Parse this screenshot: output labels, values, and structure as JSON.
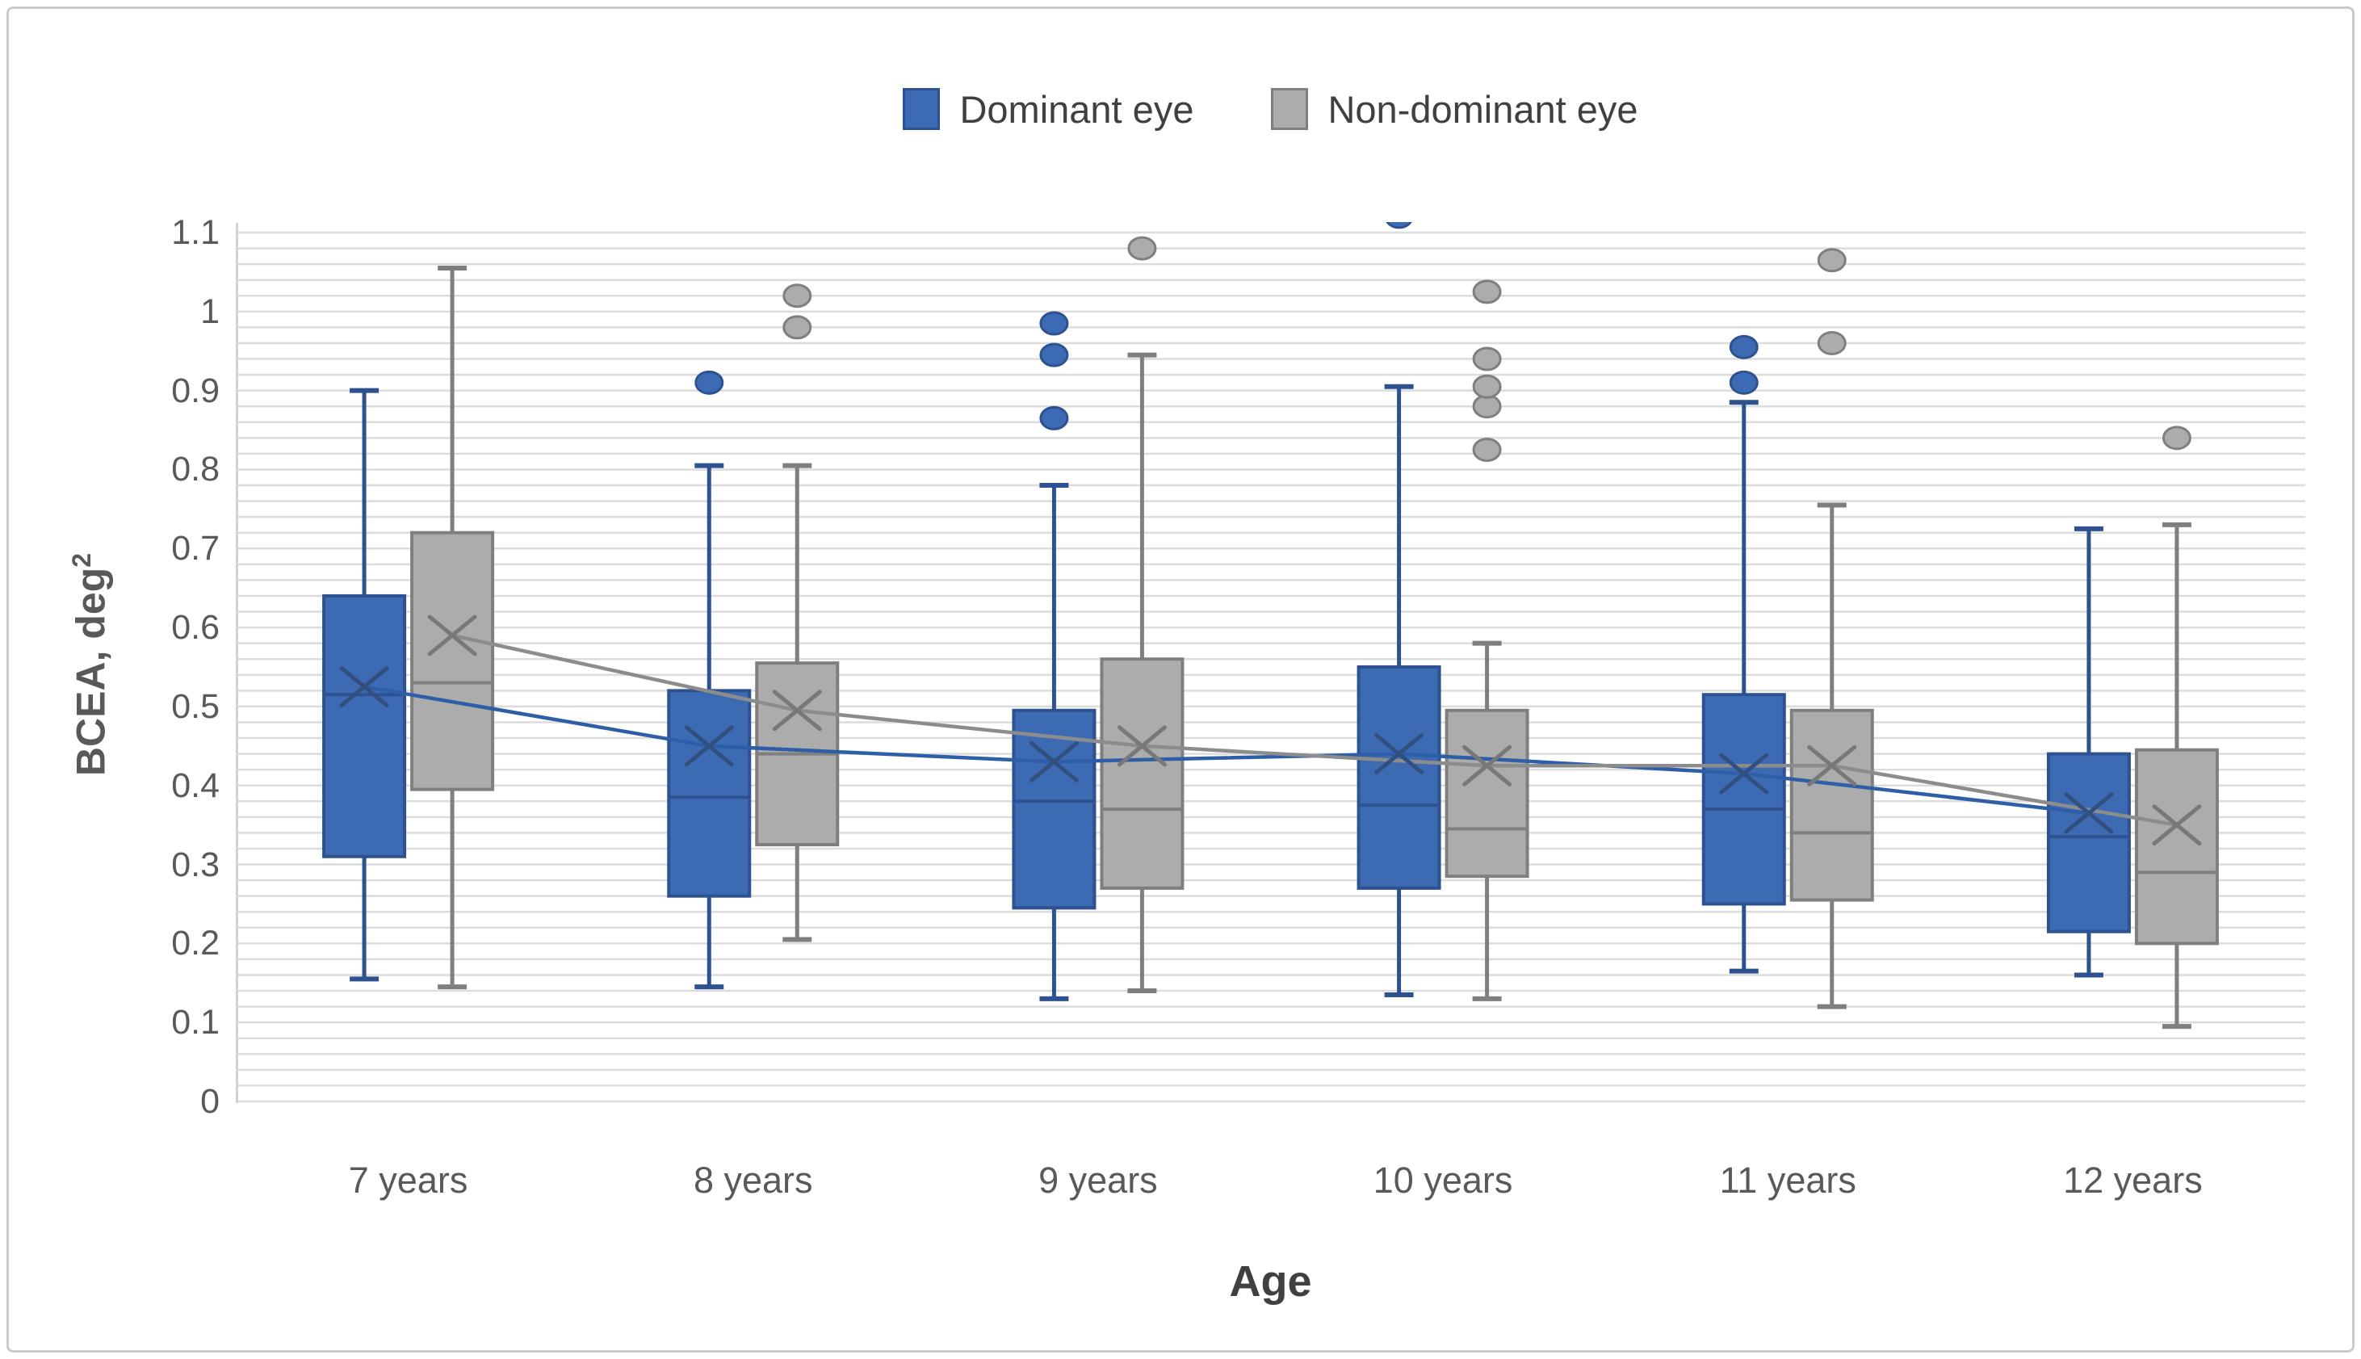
{
  "legend": {
    "items": [
      {
        "label": "Dominant eye",
        "color": "#3d6bb3",
        "border": "#2e5290"
      },
      {
        "label": "Non-dominant eye",
        "color": "#acacac",
        "border": "#7f7f7f"
      }
    ]
  },
  "y_axis": {
    "title": "BCEA, deg",
    "title_superscript": "2",
    "ticks": [
      "1.1",
      "1",
      "0.9",
      "0.8",
      "0.7",
      "0.6",
      "0.5",
      "0.4",
      "0.3",
      "0.2",
      "0.1",
      "0"
    ],
    "min": 0,
    "max": 1.1,
    "minor_gridline_step": 0.02,
    "gridline_color": "#dcdcdc"
  },
  "x_axis": {
    "title": "Age",
    "categories": [
      "7 years",
      "8 years",
      "9 years",
      "10 years",
      "11 years",
      "12 years"
    ]
  },
  "chart_data": {
    "type": "boxplot",
    "title": "",
    "xlabel": "Age",
    "ylabel": "BCEA, deg2",
    "ylim": [
      0,
      1.1
    ],
    "grid": "horizontal-minor",
    "legend_position": "top-center",
    "categories": [
      "7 years",
      "8 years",
      "9 years",
      "10 years",
      "11 years",
      "12 years"
    ],
    "series": [
      {
        "name": "Dominant eye",
        "fill": "#3d6bb3",
        "stroke": "#2e5290",
        "trend_line_color": "#2e5ea8",
        "mean_marker_color": "#31507f",
        "boxes": [
          {
            "whisker_low": 0.155,
            "q1": 0.31,
            "median": 0.515,
            "mean": 0.525,
            "q3": 0.64,
            "whisker_high": 0.9,
            "outliers": []
          },
          {
            "whisker_low": 0.145,
            "q1": 0.26,
            "median": 0.385,
            "mean": 0.45,
            "q3": 0.52,
            "whisker_high": 0.805,
            "outliers": [
              0.91
            ]
          },
          {
            "whisker_low": 0.13,
            "q1": 0.245,
            "median": 0.38,
            "mean": 0.43,
            "q3": 0.495,
            "whisker_high": 0.78,
            "outliers": [
              0.865,
              0.945,
              0.985
            ]
          },
          {
            "whisker_low": 0.135,
            "q1": 0.27,
            "median": 0.375,
            "mean": 0.44,
            "q3": 0.55,
            "whisker_high": 0.905,
            "outliers": [
              1.12
            ]
          },
          {
            "whisker_low": 0.165,
            "q1": 0.25,
            "median": 0.37,
            "mean": 0.415,
            "q3": 0.515,
            "whisker_high": 0.885,
            "outliers": [
              0.91,
              0.955
            ]
          },
          {
            "whisker_low": 0.16,
            "q1": 0.215,
            "median": 0.335,
            "mean": 0.365,
            "q3": 0.44,
            "whisker_high": 0.725,
            "outliers": []
          }
        ]
      },
      {
        "name": "Non-dominant eye",
        "fill": "#acacac",
        "stroke": "#7f7f7f",
        "trend_line_color": "#8c8c8c",
        "mean_marker_color": "#787878",
        "boxes": [
          {
            "whisker_low": 0.145,
            "q1": 0.395,
            "median": 0.53,
            "mean": 0.59,
            "q3": 0.72,
            "whisker_high": 1.055,
            "outliers": []
          },
          {
            "whisker_low": 0.205,
            "q1": 0.325,
            "median": 0.44,
            "mean": 0.495,
            "q3": 0.555,
            "whisker_high": 0.805,
            "outliers": [
              0.98,
              1.02
            ]
          },
          {
            "whisker_low": 0.14,
            "q1": 0.27,
            "median": 0.37,
            "mean": 0.45,
            "q3": 0.56,
            "whisker_high": 0.945,
            "outliers": [
              1.08
            ]
          },
          {
            "whisker_low": 0.13,
            "q1": 0.285,
            "median": 0.345,
            "mean": 0.425,
            "q3": 0.495,
            "whisker_high": 0.58,
            "outliers": [
              0.825,
              0.88,
              0.905,
              0.94,
              1.025
            ]
          },
          {
            "whisker_low": 0.12,
            "q1": 0.255,
            "median": 0.34,
            "mean": 0.425,
            "q3": 0.495,
            "whisker_high": 0.755,
            "outliers": [
              0.96,
              1.065
            ]
          },
          {
            "whisker_low": 0.095,
            "q1": 0.2,
            "median": 0.29,
            "mean": 0.35,
            "q3": 0.445,
            "whisker_high": 0.73,
            "outliers": [
              0.84
            ]
          }
        ]
      }
    ]
  }
}
